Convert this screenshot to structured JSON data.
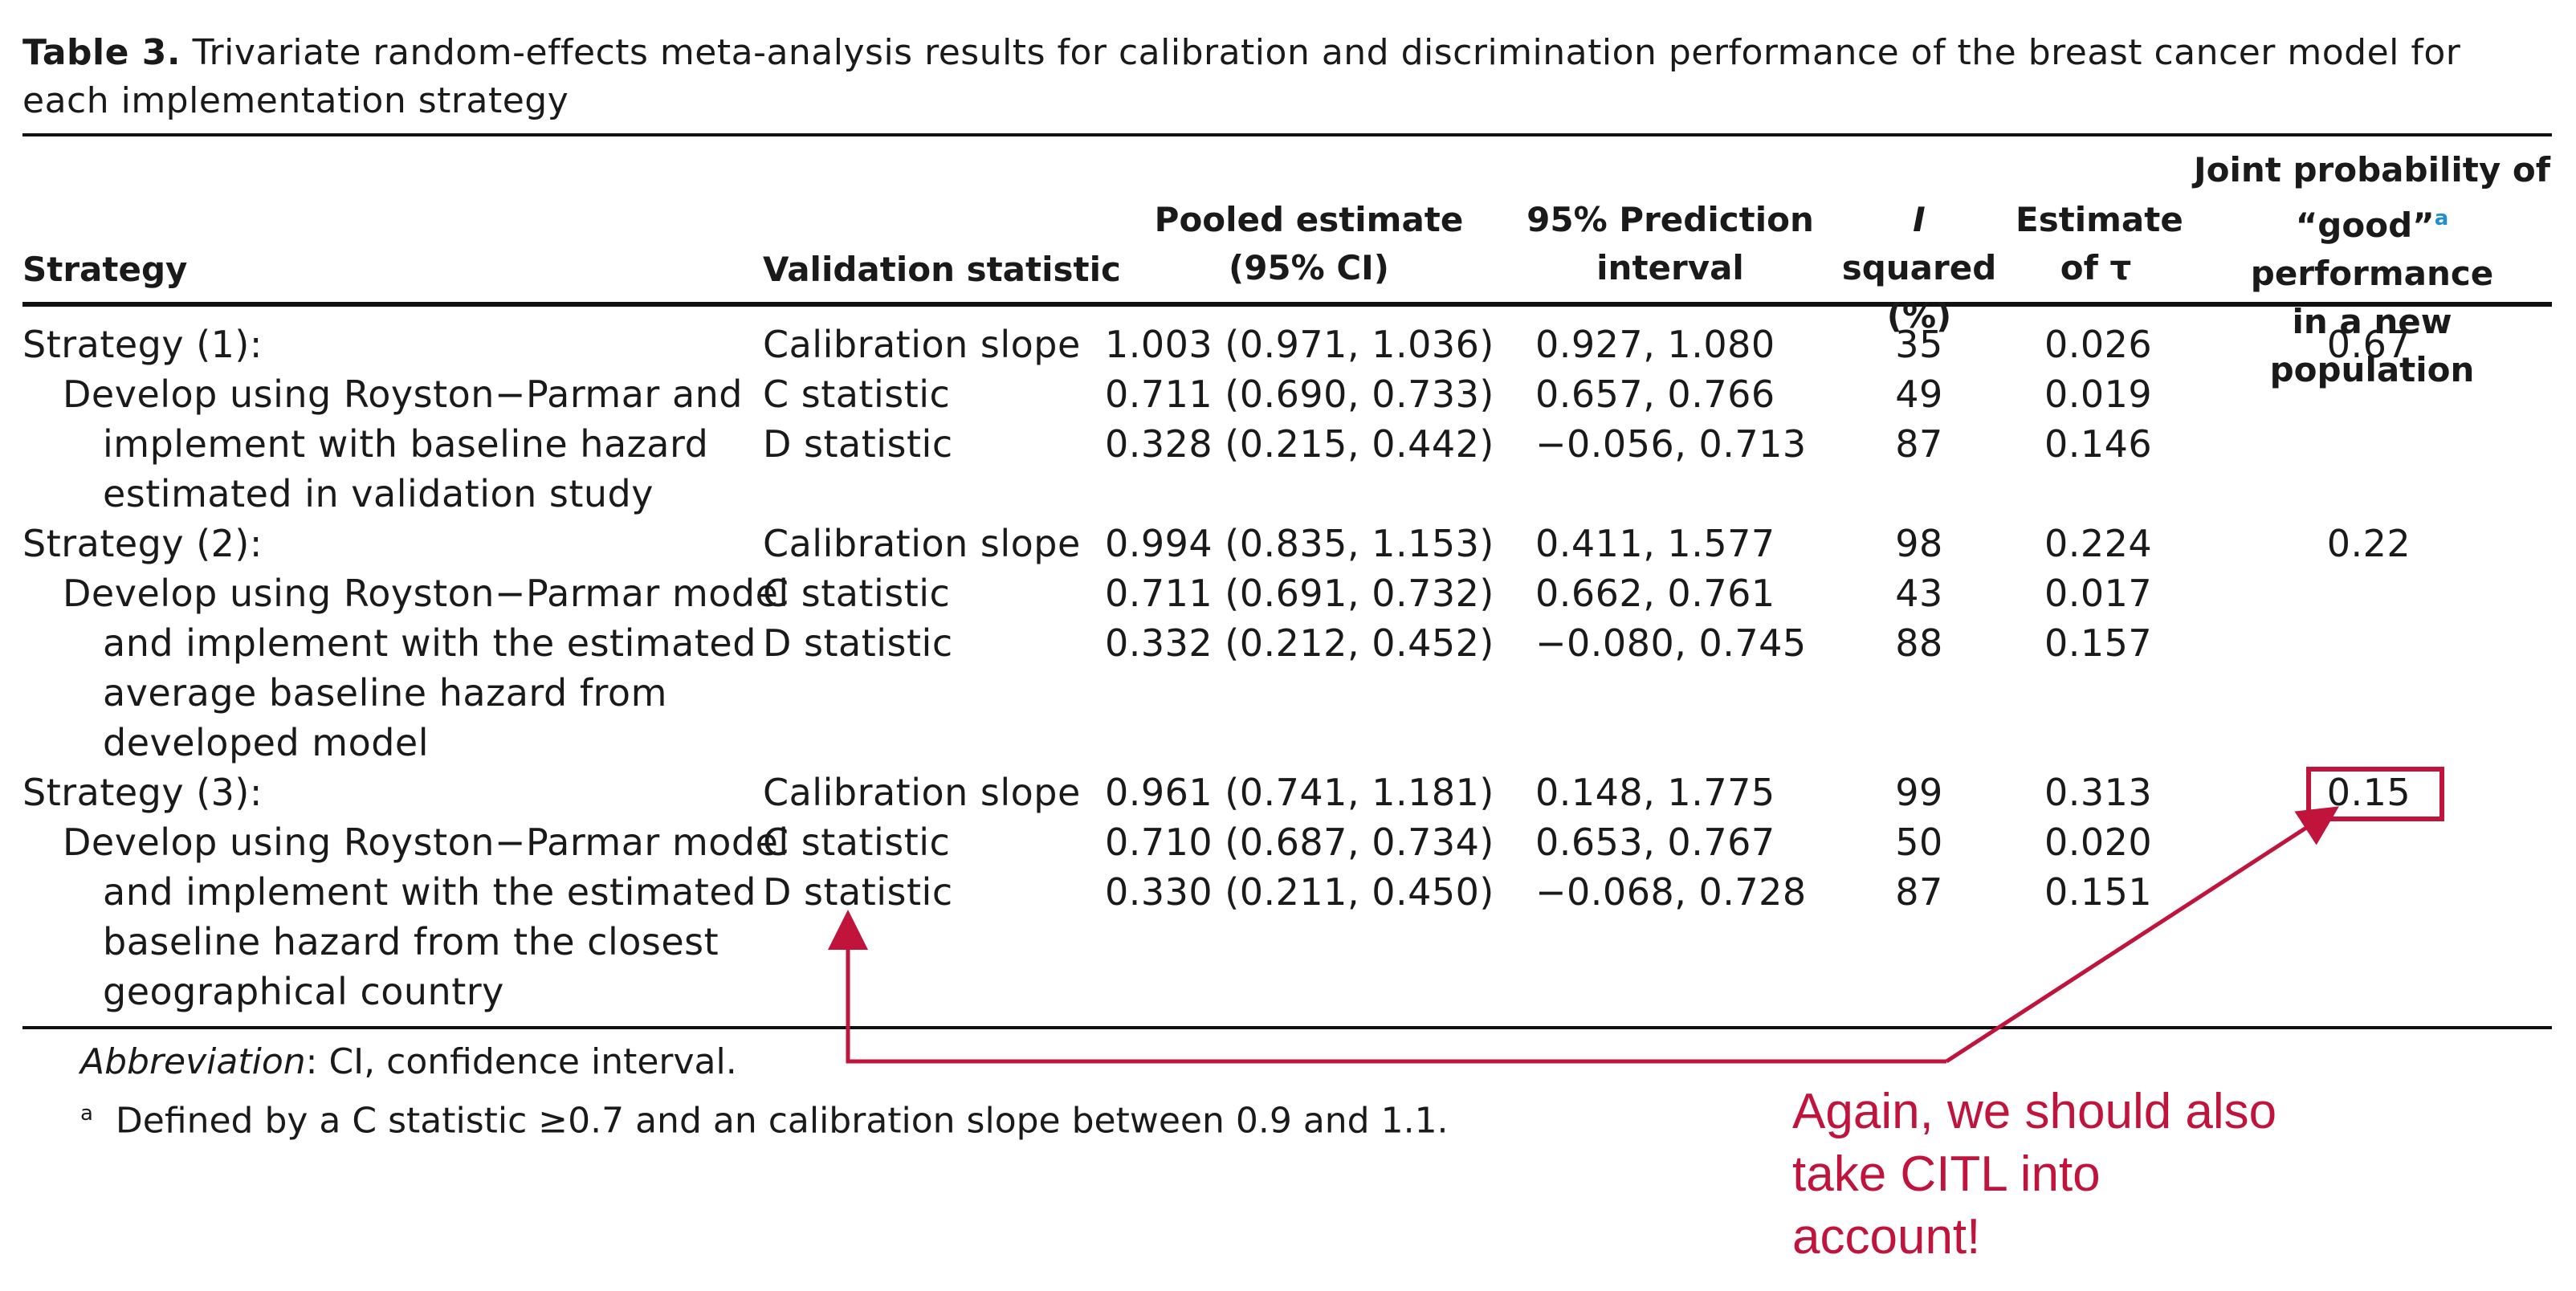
{
  "caption": {
    "label": "Table 3.",
    "text": "Trivariate random-effects meta-analysis results for calibration and discrimination performance of the breast cancer model for each implementation strategy"
  },
  "headers": {
    "strategy": "Strategy",
    "validation": "Validation statistic",
    "pooled_l1": "Pooled estimate",
    "pooled_l2": "(95% CI)",
    "pred_l1": "95% Prediction",
    "pred_l2": "interval",
    "isq_l1_italic": "I",
    "isq_l1_rest": " squared",
    "isq_l2": "(%)",
    "tau_l1": "Estimate",
    "tau_l2": "of τ",
    "joint_l1": "Joint probability of",
    "joint_l2_a": "“good”",
    "joint_l2_sup": "a",
    "joint_l2_b": " performance",
    "joint_l3": "in a new population"
  },
  "strategies": [
    {
      "name": "Strategy (1):",
      "desc": [
        "Develop using Royston−Parmar and",
        "implement with baseline hazard",
        "estimated in validation study"
      ],
      "joint": "0.67",
      "rows": [
        {
          "stat": "Calibration slope",
          "pooled": "1.003 (0.971, 1.036)",
          "pred": "0.927, 1.080",
          "isq": "35",
          "tau": "0.026"
        },
        {
          "stat": "C statistic",
          "pooled": "0.711 (0.690, 0.733)",
          "pred": "0.657, 0.766",
          "isq": "49",
          "tau": "0.019"
        },
        {
          "stat": "D statistic",
          "pooled": "0.328 (0.215, 0.442)",
          "pred": "−0.056, 0.713",
          "isq": "87",
          "tau": "0.146"
        }
      ]
    },
    {
      "name": "Strategy (2):",
      "desc": [
        "Develop using Royston−Parmar model",
        "and implement with the estimated",
        "average baseline hazard from",
        "developed model"
      ],
      "joint": "0.22",
      "rows": [
        {
          "stat": "Calibration slope",
          "pooled": "0.994 (0.835, 1.153)",
          "pred": "0.411, 1.577",
          "isq": "98",
          "tau": "0.224"
        },
        {
          "stat": "C statistic",
          "pooled": "0.711 (0.691, 0.732)",
          "pred": "0.662, 0.761",
          "isq": "43",
          "tau": "0.017"
        },
        {
          "stat": "D statistic",
          "pooled": "0.332 (0.212, 0.452)",
          "pred": "−0.080, 0.745",
          "isq": "88",
          "tau": "0.157"
        }
      ]
    },
    {
      "name": "Strategy (3):",
      "desc": [
        "Develop using Royston−Parmar model",
        "and implement with the estimated",
        "baseline hazard from the closest",
        "geographical country"
      ],
      "joint": "0.15",
      "rows": [
        {
          "stat": "Calibration slope",
          "pooled": "0.961 (0.741, 1.181)",
          "pred": "0.148, 1.775",
          "isq": "99",
          "tau": "0.313"
        },
        {
          "stat": "C statistic",
          "pooled": "0.710 (0.687, 0.734)",
          "pred": "0.653, 0.767",
          "isq": "50",
          "tau": "0.020"
        },
        {
          "stat": "D statistic",
          "pooled": "0.330 (0.211, 0.450)",
          "pred": "−0.068, 0.728",
          "isq": "87",
          "tau": "0.151"
        }
      ]
    }
  ],
  "footnotes": {
    "abbr_label": "Abbreviation",
    "abbr_text": ": CI, confidence interval.",
    "a_sup": "a",
    "a_text": "Defined by a C statistic ≥0.7 and an calibration slope between 0.9 and 1.1."
  },
  "annotation": {
    "lines": [
      "Again, we should also",
      "take CITL into",
      "account!"
    ],
    "color": "#c0143c"
  }
}
